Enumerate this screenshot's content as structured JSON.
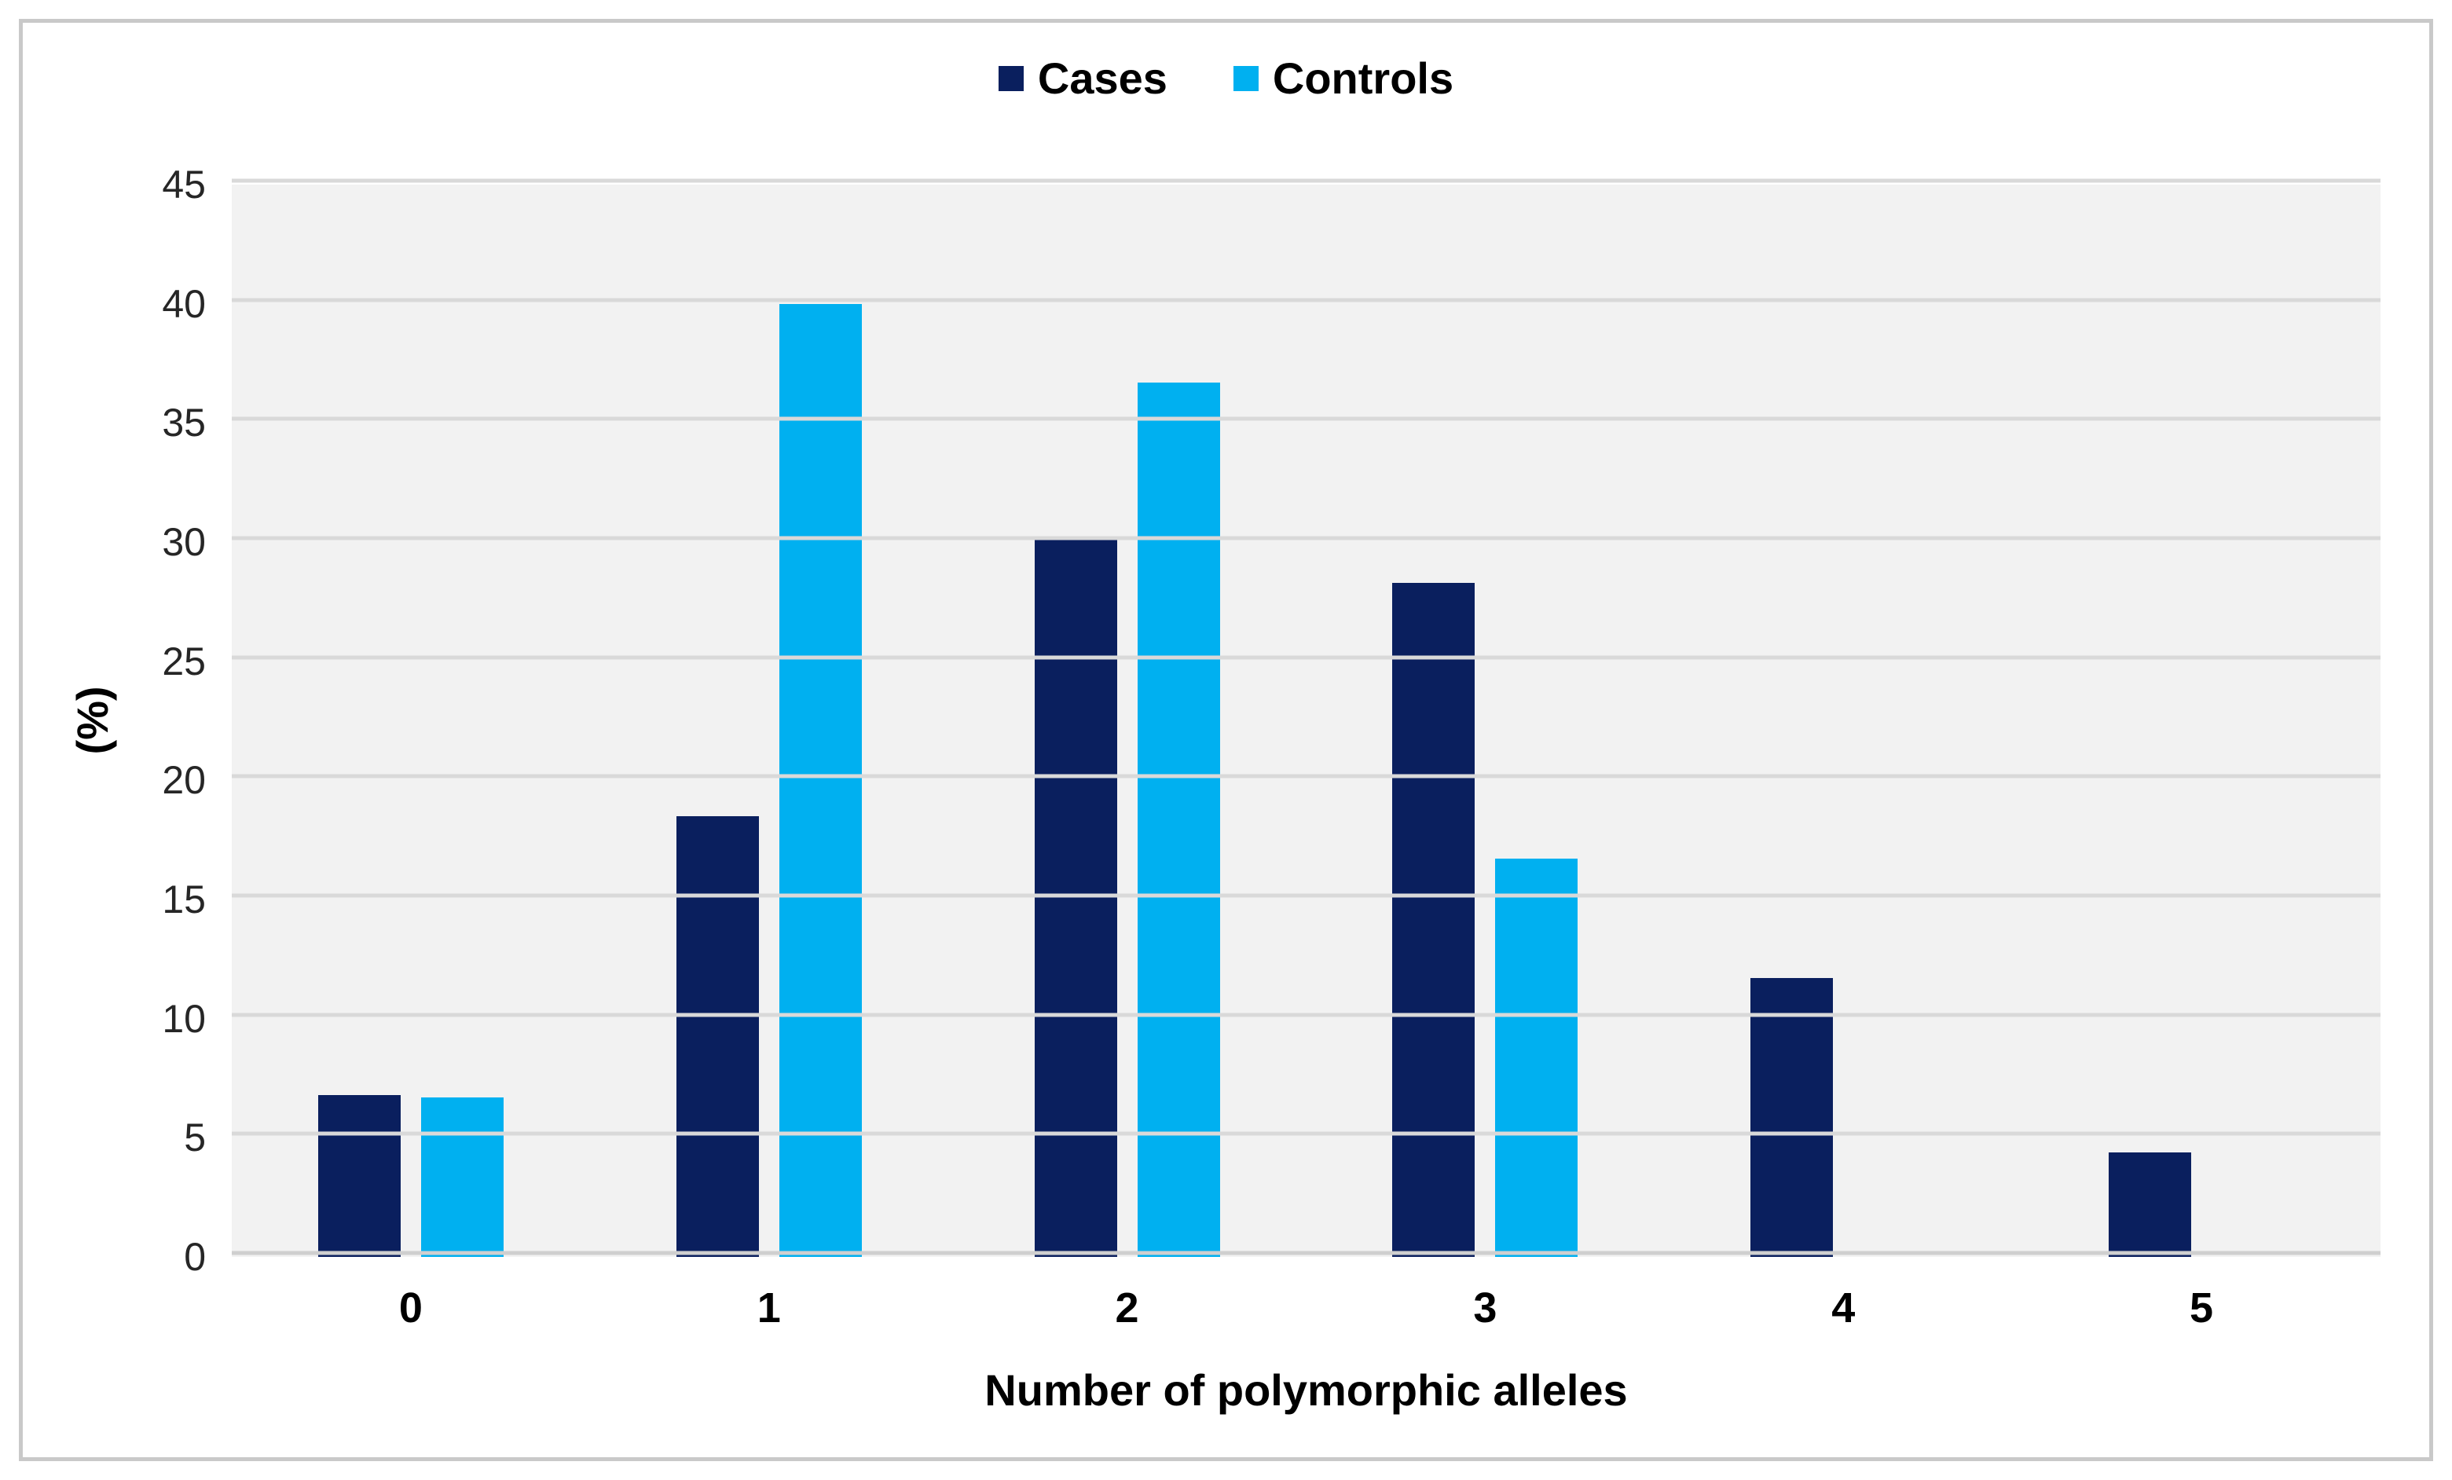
{
  "figure": {
    "background": "#ffffff",
    "frame_border_color": "#c9c9c9"
  },
  "legend": {
    "position": "top-center",
    "items": [
      {
        "label": "Cases",
        "color": "#0a1f5e"
      },
      {
        "label": "Controls",
        "color": "#00b0f0"
      }
    ]
  },
  "chart_data": {
    "type": "bar",
    "title": "",
    "categories": [
      "0",
      "1",
      "2",
      "3",
      "4",
      "5"
    ],
    "series": [
      {
        "name": "Cases",
        "color": "#0a1f5e",
        "values": [
          6.8,
          18.5,
          30.2,
          28.3,
          11.7,
          4.4
        ]
      },
      {
        "name": "Controls",
        "color": "#00b0f0",
        "values": [
          6.7,
          40.0,
          36.7,
          16.7,
          0,
          0
        ]
      }
    ],
    "xlabel": "Number of polymorphic alleles",
    "ylabel": "(%)",
    "ylim": [
      0,
      45
    ],
    "yticks": [
      0,
      5,
      10,
      15,
      20,
      25,
      30,
      35,
      40,
      45
    ],
    "grid": true,
    "plot_background": "#f2f2f2",
    "gridline_color": "#d9d9d9",
    "legend_position": "top-center"
  }
}
